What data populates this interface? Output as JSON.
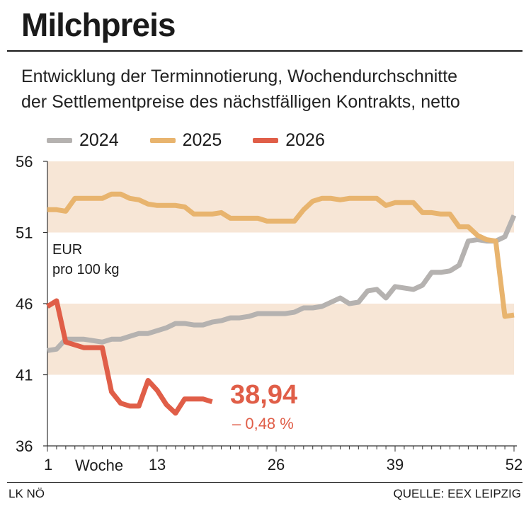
{
  "title": "Milchpreis",
  "subtitle_lines": [
    "Entwicklung der Terminnotierung, Wochendurchschnitte",
    "der Settlementpreise des nächstfälligen Kontrakts, netto"
  ],
  "footer": {
    "left": "LK NÖ",
    "right": "QUELLE: EEX LEIPZIG"
  },
  "chart_data": {
    "type": "line",
    "ylabel_lines": [
      "EUR",
      "pro 100 kg"
    ],
    "xlabel": "Woche",
    "xlim": [
      1,
      52
    ],
    "ylim": [
      36,
      56
    ],
    "y_ticks": [
      56,
      51,
      46,
      41,
      36
    ],
    "x_ticks": [
      1,
      13,
      26,
      39,
      52
    ],
    "shaded_bands": [
      [
        51,
        56
      ],
      [
        41,
        46
      ]
    ],
    "colors": {
      "2024": "#b5b2b0",
      "2025": "#e8b46e",
      "2026": "#e05e48",
      "band": "#f7e6d6",
      "axis": "#333333"
    },
    "series": [
      {
        "name": "2024",
        "x": [
          1,
          2,
          3,
          4,
          5,
          6,
          7,
          8,
          9,
          10,
          11,
          12,
          13,
          14,
          15,
          16,
          17,
          18,
          19,
          20,
          21,
          22,
          23,
          24,
          25,
          26,
          27,
          28,
          29,
          30,
          31,
          32,
          33,
          34,
          35,
          36,
          37,
          38,
          39,
          40,
          41,
          42,
          43,
          44,
          45,
          46,
          47,
          48,
          49,
          50,
          51,
          52
        ],
        "y": [
          42.7,
          42.8,
          43.5,
          43.5,
          43.5,
          43.4,
          43.3,
          43.5,
          43.5,
          43.7,
          43.9,
          43.9,
          44.1,
          44.3,
          44.6,
          44.6,
          44.5,
          44.5,
          44.7,
          44.8,
          45.0,
          45.0,
          45.1,
          45.3,
          45.3,
          45.3,
          45.3,
          45.4,
          45.7,
          45.7,
          45.8,
          46.1,
          46.4,
          46.0,
          46.1,
          46.9,
          47.0,
          46.4,
          47.2,
          47.1,
          47.0,
          47.3,
          48.2,
          48.2,
          48.3,
          48.7,
          50.4,
          50.5,
          50.4,
          50.4,
          50.7,
          52.2
        ]
      },
      {
        "name": "2025",
        "x": [
          1,
          2,
          3,
          4,
          5,
          6,
          7,
          8,
          9,
          10,
          11,
          12,
          13,
          14,
          15,
          16,
          17,
          18,
          19,
          20,
          21,
          22,
          23,
          24,
          25,
          26,
          27,
          28,
          29,
          30,
          31,
          32,
          33,
          34,
          35,
          36,
          37,
          38,
          39,
          40,
          41,
          42,
          43,
          44,
          45,
          46,
          47,
          48,
          49,
          50,
          51,
          52
        ],
        "y": [
          52.6,
          52.6,
          52.5,
          53.4,
          53.4,
          53.4,
          53.4,
          53.7,
          53.7,
          53.4,
          53.3,
          53.0,
          52.9,
          52.9,
          52.9,
          52.8,
          52.3,
          52.3,
          52.3,
          52.4,
          52.0,
          52.0,
          52.0,
          52.0,
          51.8,
          51.8,
          51.8,
          51.8,
          52.6,
          53.2,
          53.4,
          53.4,
          53.3,
          53.4,
          53.4,
          53.4,
          53.4,
          52.9,
          53.1,
          53.1,
          53.1,
          52.4,
          52.4,
          52.3,
          52.3,
          51.4,
          51.4,
          50.8,
          50.5,
          50.4,
          45.1,
          45.2
        ]
      },
      {
        "name": "2026",
        "x": [
          1,
          2,
          3,
          4,
          5,
          6,
          7,
          8,
          9,
          10,
          11,
          12,
          13,
          14,
          15,
          16,
          17,
          18,
          19
        ],
        "y": [
          45.8,
          46.2,
          43.3,
          43.1,
          42.9,
          42.9,
          42.9,
          39.8,
          39.0,
          38.8,
          38.8,
          40.6,
          39.9,
          38.9,
          38.3,
          39.3,
          39.3,
          39.3,
          39.1
        ]
      }
    ],
    "annotation": {
      "value": "38,94",
      "change": "– 0,48 %"
    }
  }
}
